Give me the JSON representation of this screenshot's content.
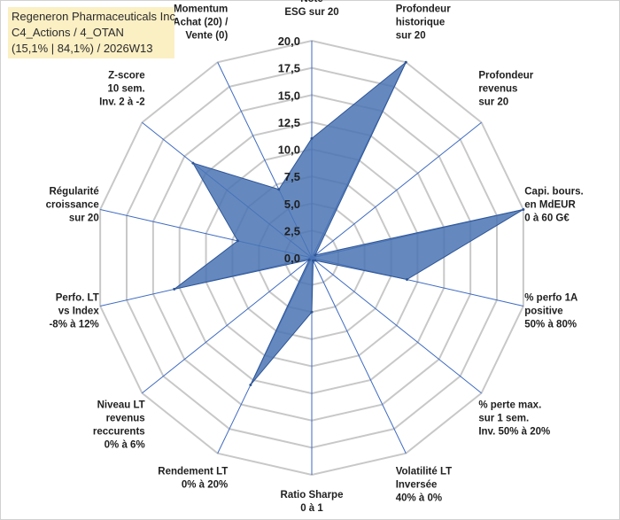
{
  "header": {
    "line1": "Regeneron Pharmaceuticals Inc",
    "line2": "C4_Actions / 4_OTAN",
    "line3": "(15,1% | 84,1%) / 2026W13"
  },
  "chart_data": {
    "type": "radar",
    "title": "Regeneron Pharmaceuticals Inc",
    "rlim": [
      0,
      20
    ],
    "ticks": [
      "0,0",
      "2,5",
      "5,0",
      "7,5",
      "10,0",
      "12,5",
      "15,0",
      "17,5",
      "20,0"
    ],
    "tick_values": [
      0,
      2.5,
      5,
      7.5,
      10,
      12.5,
      15,
      17.5,
      20
    ],
    "categories": [
      [
        "Note",
        "ESG sur 20"
      ],
      [
        "Profondeur",
        "historique",
        "sur 20"
      ],
      [
        "Profondeur",
        "revenus",
        "sur 20"
      ],
      [
        "Capi. bours.",
        "en MdEUR",
        "0 à 60 G€"
      ],
      [
        "% perfo 1A",
        "positive",
        "50% à 80%"
      ],
      [
        "% perte max.",
        "sur 1 sem.",
        "Inv. 50% à 20%"
      ],
      [
        "Volatilité LT",
        "Inversée",
        "40% à 0%"
      ],
      [
        "Ratio Sharpe",
        "0 à 1"
      ],
      [
        "Rendement LT",
        "0% à 20%"
      ],
      [
        "Niveau LT",
        "revenus",
        "reccurents",
        "0% à 6%"
      ],
      [
        "Perfo. LT",
        "vs Index",
        "-8% à 12%"
      ],
      [
        "Régularité",
        "croissance",
        "sur 20"
      ],
      [
        "Z-score",
        "10 sem.",
        "Inv. 2 à -2"
      ],
      [
        "Momentum",
        "Achat (20) /",
        "Vente (0)"
      ]
    ],
    "series": [
      {
        "name": "Regeneron Pharmaceuticals Inc",
        "values": [
          11,
          20,
          0.4,
          20,
          9,
          0.4,
          0.3,
          5,
          13,
          0.3,
          13,
          7,
          14,
          7
        ]
      }
    ],
    "colors": {
      "fill": "#4a74b4",
      "stroke": "#2e5596",
      "grid": "#c8c8c8",
      "axis": "#3d6ac1"
    }
  }
}
